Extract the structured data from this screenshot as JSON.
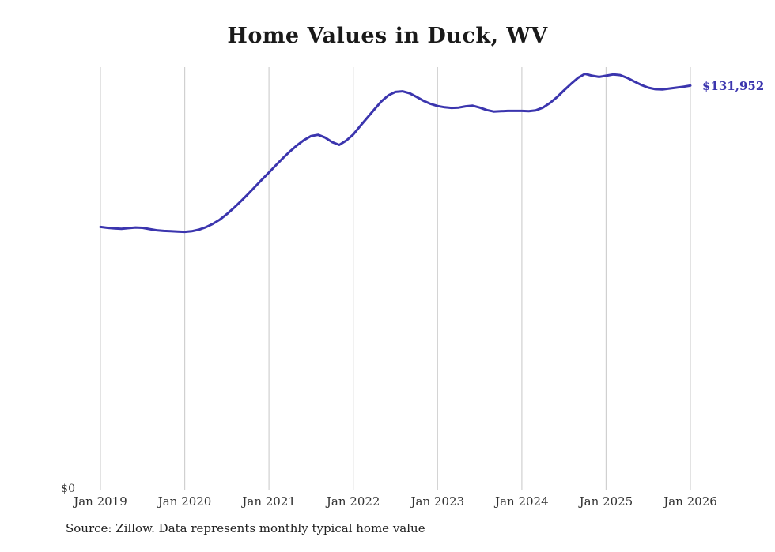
{
  "title": "Home Values in Duck, WV",
  "y_zero_label": "$0",
  "latest_label": "$131,952",
  "source_note": "Source: Zillow. Data represents monthly typical home value",
  "chart_data": {
    "type": "line",
    "title": "Home Values in Duck, WV",
    "xlabel": "",
    "ylabel": "",
    "x_ticks": [
      "Jan 2019",
      "Jan 2020",
      "Jan 2021",
      "Jan 2022",
      "Jan 2023",
      "Jan 2024",
      "Jan 2025",
      "Jan 2026"
    ],
    "x_start": "Jan 2019",
    "x_end": "Jan 2026",
    "x_frequency": "monthly",
    "ylim": [
      0,
      138000
    ],
    "grid": "vertical-only",
    "legend": "none",
    "latest_value": 131952,
    "latest_value_label": "$131,952",
    "line_color": "#3b35ae",
    "label_color": "#3b35ae",
    "gridline_color": "#d0d0d0",
    "values": [
      85800,
      85500,
      85300,
      85200,
      85400,
      85600,
      85500,
      85100,
      84700,
      84500,
      84400,
      84300,
      84200,
      84400,
      84900,
      85700,
      86800,
      88200,
      90000,
      92000,
      94200,
      96500,
      98900,
      101300,
      103600,
      106000,
      108300,
      110500,
      112500,
      114200,
      115500,
      115900,
      115000,
      113500,
      112600,
      114000,
      116000,
      118800,
      121500,
      124200,
      126800,
      128800,
      129900,
      130100,
      129500,
      128300,
      127000,
      126000,
      125300,
      124900,
      124700,
      124800,
      125200,
      125400,
      124800,
      124000,
      123500,
      123600,
      123700,
      123700,
      123700,
      123600,
      123900,
      124800,
      126300,
      128200,
      130400,
      132500,
      134500,
      135800,
      135200,
      134800,
      135200,
      135600,
      135400,
      134500,
      133300,
      132200,
      131300,
      130800,
      130700,
      131000,
      131300,
      131600,
      131952
    ]
  }
}
